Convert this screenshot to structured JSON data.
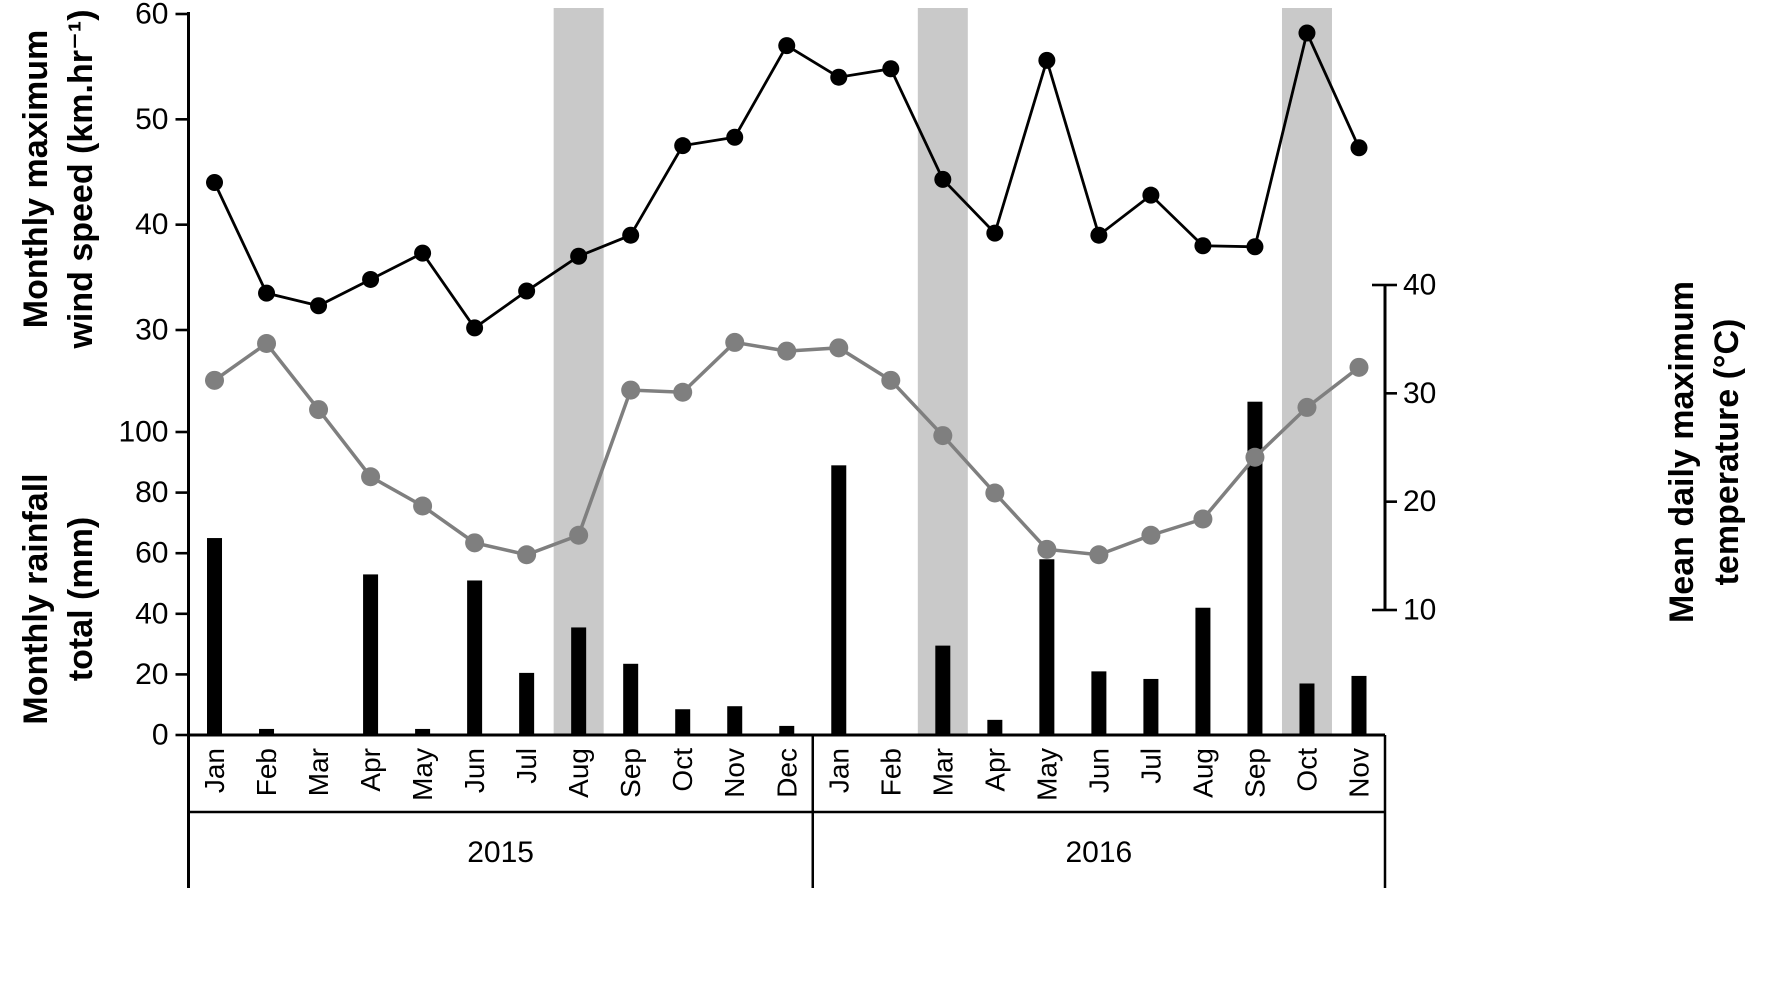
{
  "figure": {
    "background": "#ffffff",
    "text_color": "#000000"
  },
  "axes": {
    "wind": {
      "title_line1": "Monthly maximum",
      "title_line2": "wind speed (km.hr⁻¹)",
      "ticks": [
        60,
        50,
        40,
        30
      ],
      "min": 30,
      "max": 60,
      "side": "left"
    },
    "rain": {
      "title_line1": "Monthly rainfall",
      "title_line2": "total (mm)",
      "ticks": [
        100,
        80,
        60,
        40,
        20,
        0
      ],
      "min": 0,
      "max": 100,
      "side": "left"
    },
    "temp": {
      "title_line1": "Mean daily maximum",
      "title_line2": "temperature (°C)",
      "ticks": [
        40,
        30,
        20,
        10
      ],
      "min": 10,
      "max": 40,
      "side": "right"
    }
  },
  "chart_data": {
    "type": "combo",
    "x": {
      "groups": [
        {
          "year": "2015",
          "months": [
            "Jan",
            "Feb",
            "Mar",
            "Apr",
            "May",
            "Jun",
            "Jul",
            "Aug",
            "Sep",
            "Oct",
            "Nov",
            "Dec"
          ]
        },
        {
          "year": "2016",
          "months": [
            "Jan",
            "Feb",
            "Mar",
            "Apr",
            "May",
            "Jun",
            "Jul",
            "Aug",
            "Sep",
            "Oct",
            "Nov"
          ]
        }
      ]
    },
    "series": [
      {
        "name": "Monthly maximum wind speed",
        "unit": "km.hr-1",
        "type": "line",
        "axis": "wind",
        "color": "#000000",
        "values": [
          44,
          33.5,
          32.3,
          34.8,
          37.3,
          30.2,
          33.7,
          37,
          39,
          47.5,
          48.3,
          57,
          54,
          54.8,
          44.3,
          39.2,
          55.6,
          39,
          42.8,
          38,
          37.9,
          58.2,
          47.3
        ]
      },
      {
        "name": "Mean daily maximum temperature",
        "unit": "°C",
        "type": "line",
        "axis": "temp",
        "color": "#7f7f7f",
        "values": [
          31.2,
          34.6,
          28.5,
          22.3,
          19.6,
          16.2,
          15.1,
          16.9,
          30.3,
          30.1,
          34.7,
          33.9,
          34.2,
          31.2,
          26.1,
          20.8,
          15.6,
          15.1,
          16.9,
          18.4,
          24.1,
          28.7,
          32.4
        ]
      },
      {
        "name": "Monthly rainfall total",
        "unit": "mm",
        "type": "bar",
        "axis": "rain",
        "color": "#000000",
        "values": [
          65,
          2,
          0,
          53,
          2,
          51,
          20.5,
          35.5,
          23.5,
          8.5,
          9.5,
          3,
          89,
          0,
          29.5,
          5,
          58,
          21,
          18.5,
          42,
          110,
          17,
          19.5
        ]
      }
    ],
    "highlight_bands": {
      "color": "#c9c9c9",
      "month_indices": [
        7,
        14,
        21
      ],
      "labels": [
        "Aug 2015",
        "Mar 2016",
        "Oct 2016"
      ]
    },
    "year_labels": [
      "2015",
      "2016"
    ]
  }
}
